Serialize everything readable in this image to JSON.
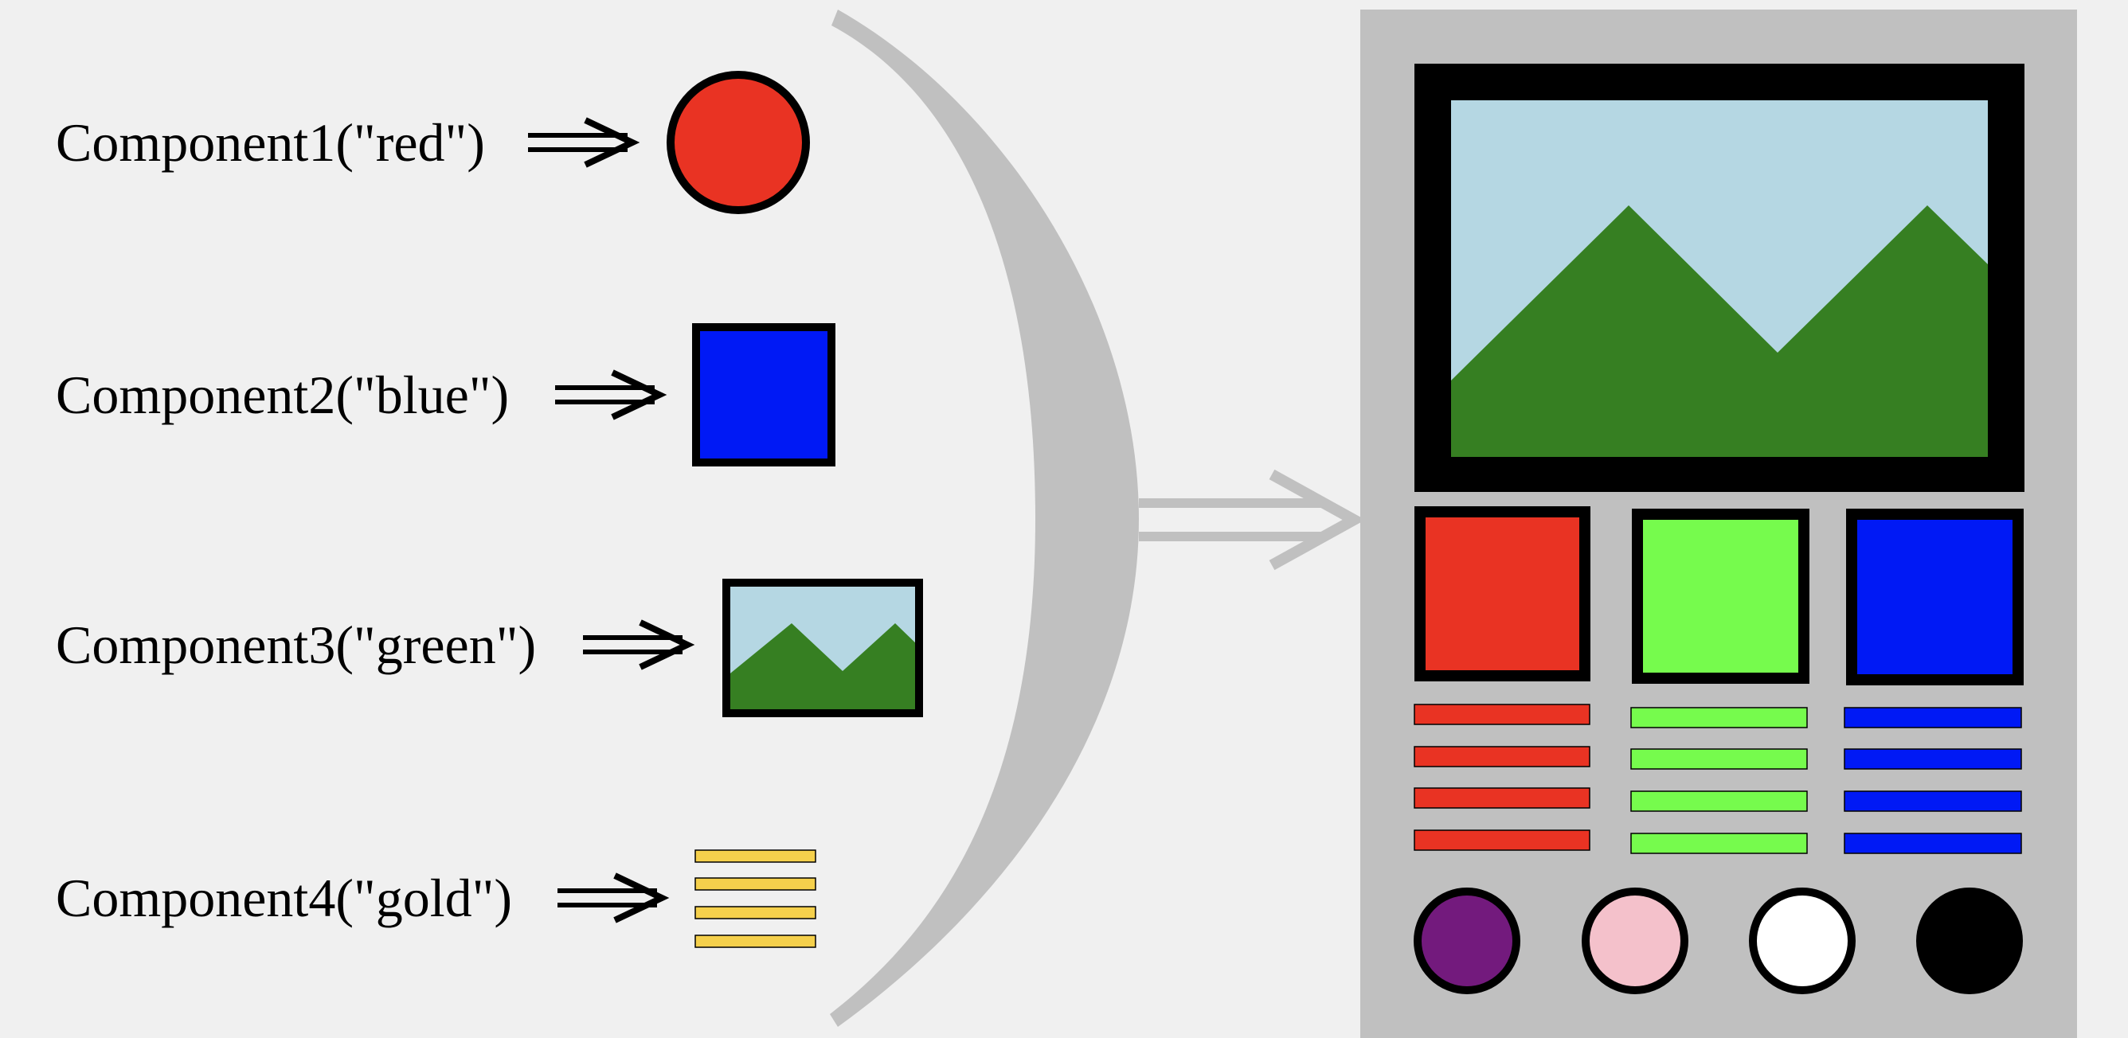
{
  "components": [
    {
      "label": "Component1(\"red\")",
      "shape": "circle",
      "color": "#e93323"
    },
    {
      "label": "Component2(\"blue\")",
      "shape": "square",
      "color": "#0019f5"
    },
    {
      "label": "Component3(\"green\")",
      "shape": "landscape-image",
      "color": "#367f22"
    },
    {
      "label": "Component4(\"gold\")",
      "shape": "text-lines",
      "color": "#f5d04c"
    }
  ],
  "colors": {
    "background": "#f0f0f0",
    "brace": "#c0c0c0",
    "panel": "#c0c0c0",
    "sky": "#b5d7e3",
    "mountain": "#367f22",
    "red": "#e93323",
    "green": "#76fb4d",
    "blue": "#0019f5",
    "gold": "#f5d04c",
    "purple": "#731a7d",
    "pink": "#f4c1cb",
    "white": "#ffffff",
    "black": "#000000"
  }
}
